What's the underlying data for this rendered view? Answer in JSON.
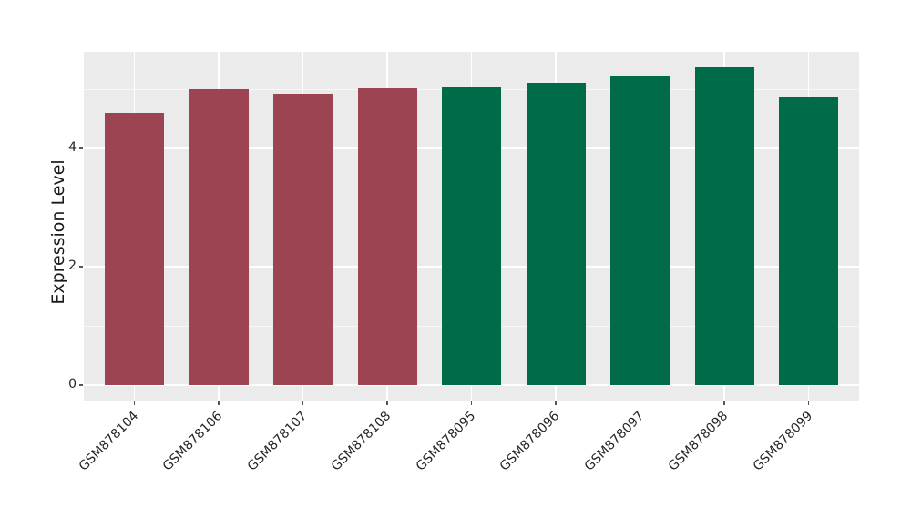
{
  "chart_data": {
    "type": "bar",
    "title": "",
    "xlabel": "",
    "ylabel": "Expression Level",
    "categories": [
      "GSM878104",
      "GSM878106",
      "GSM878107",
      "GSM878108",
      "GSM878095",
      "GSM878096",
      "GSM878097",
      "GSM878098",
      "GSM878099"
    ],
    "values": [
      4.6,
      5.0,
      4.92,
      5.02,
      5.03,
      5.11,
      5.23,
      5.37,
      4.86
    ],
    "bar_colors": [
      "#9C4451",
      "#9C4451",
      "#9C4451",
      "#9C4451",
      "#006B48",
      "#006B48",
      "#006B48",
      "#006B48",
      "#006B48"
    ],
    "group_colors": {
      "red_group": "#9C4451",
      "green_group": "#006B48"
    },
    "y_ticks": [
      0,
      2,
      4
    ],
    "y_minor_gridlines": [
      1,
      3,
      5
    ],
    "ylim": [
      0,
      5.63
    ],
    "x_tick_rotation_deg": 45,
    "legend": "none",
    "grid": "on",
    "panel_bg": "#EBEBEB",
    "grid_color": "#FFFFFF",
    "tick_color": "#555555",
    "text_color": "#262626"
  }
}
